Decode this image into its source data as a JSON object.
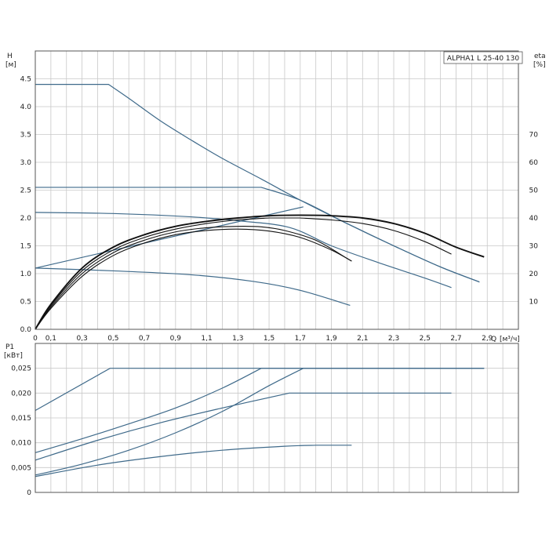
{
  "chart_data": [
    {
      "type": "line",
      "title": "ALPHA1 L 25-40 130",
      "ylabel": "H",
      "ylabel_unit": "[м]",
      "y2label": "eta",
      "y2label_unit": "[%]",
      "xlabel": "Q",
      "xlabel_unit": "[м³/ч]",
      "xlim": [
        0,
        3.1
      ],
      "ylim": [
        0,
        5
      ],
      "y2lim": [
        0,
        100
      ],
      "x_ticks": [
        0,
        0.1,
        0.3,
        0.5,
        0.7,
        0.9,
        1.1,
        1.3,
        1.5,
        1.7,
        1.9,
        2.1,
        2.3,
        2.5,
        2.7,
        2.9
      ],
      "x_tick_labels": [
        "0",
        "0,1",
        "0,3",
        "0,5",
        "0,7",
        "0,9",
        "1,1",
        "1,3",
        "1,5",
        "1,7",
        "1,9",
        "2,1",
        "2,3",
        "2,5",
        "2,7",
        "2,9"
      ],
      "y_ticks": [
        0,
        0.5,
        1,
        1.5,
        2,
        2.5,
        3,
        3.5,
        4,
        4.5
      ],
      "y_tick_labels": [
        "0.0",
        "0.5",
        "1.0",
        "1.5",
        "2.0",
        "2.5",
        "3.0",
        "3.5",
        "4.0",
        "4.5"
      ],
      "y2_ticks": [
        10,
        20,
        30,
        40,
        50,
        60,
        70
      ],
      "y2_tick_labels": [
        "10",
        "20",
        "30",
        "40",
        "50",
        "60",
        "70"
      ],
      "grid": true,
      "series": [
        {
          "color": "#3f6a8a",
          "axis": "left",
          "x": [
            0,
            0.47,
            0.6,
            0.8,
            1.0,
            1.2,
            1.45,
            1.7,
            2.0,
            2.3,
            2.6,
            2.85
          ],
          "y": [
            4.4,
            4.4,
            4.15,
            3.75,
            3.4,
            3.07,
            2.7,
            2.32,
            1.9,
            1.5,
            1.12,
            0.85
          ]
        },
        {
          "color": "#3f6a8a",
          "axis": "left",
          "x": [
            0,
            1.45,
            1.7,
            2.0,
            2.3,
            2.6,
            2.85
          ],
          "y": [
            2.55,
            2.55,
            2.32,
            1.9,
            1.5,
            1.12,
            0.85
          ]
        },
        {
          "color": "#3f6a8a",
          "axis": "left",
          "x": [
            0,
            0.5,
            1.0,
            1.3,
            1.63,
            1.9,
            2.2,
            2.5,
            2.67
          ],
          "y": [
            2.1,
            2.08,
            2.02,
            1.95,
            1.83,
            1.5,
            1.2,
            0.92,
            0.75
          ]
        },
        {
          "color": "#3f6a8a",
          "axis": "left",
          "x": [
            0,
            0.5,
            1.0,
            1.4,
            1.7,
            2.02
          ],
          "y": [
            1.1,
            1.05,
            0.98,
            0.86,
            0.7,
            0.43
          ]
        },
        {
          "color": "#3f6a8a",
          "axis": "left",
          "x": [
            0,
            1.72
          ],
          "y": [
            1.1,
            2.2
          ]
        },
        {
          "color": "#111111",
          "axis": "right",
          "x": [
            0,
            0.1,
            0.3,
            0.5,
            0.7,
            0.9,
            1.1,
            1.3,
            1.5,
            1.7,
            1.9,
            2.1,
            2.3,
            2.5,
            2.7,
            2.88
          ],
          "y": [
            0,
            9,
            22,
            29.5,
            34,
            37,
            38.8,
            40,
            40.8,
            41,
            40.8,
            40,
            38,
            34.5,
            29.5,
            26
          ]
        },
        {
          "color": "#111111",
          "axis": "right",
          "x": [
            0,
            0.1,
            0.3,
            0.5,
            0.7,
            0.9,
            1.1,
            1.3,
            1.5,
            1.7,
            1.9,
            2.1,
            2.3,
            2.5,
            2.67
          ],
          "y": [
            0,
            8.5,
            21,
            28.5,
            33,
            36,
            38,
            39.3,
            40,
            40,
            39.3,
            38,
            35.5,
            31.5,
            27
          ]
        },
        {
          "color": "#111111",
          "axis": "right",
          "x": [
            0,
            0.1,
            0.3,
            0.5,
            0.7,
            0.9,
            1.1,
            1.3,
            1.45,
            1.6,
            1.8,
            2.0,
            2.03
          ],
          "y": [
            0,
            8,
            20,
            27.5,
            32,
            35,
            36.5,
            37,
            36.8,
            35.5,
            32,
            25.5,
            24.5
          ]
        },
        {
          "color": "#111111",
          "axis": "right",
          "x": [
            0,
            0.1,
            0.3,
            0.5,
            0.7,
            0.9,
            1.1,
            1.3,
            1.5,
            1.7,
            1.9,
            2.03
          ],
          "y": [
            0,
            7.5,
            19,
            26.5,
            31,
            34,
            35.5,
            36,
            35.3,
            33,
            28.5,
            24.5
          ]
        }
      ]
    },
    {
      "type": "line",
      "ylabel": "P1",
      "ylabel_unit": "[кВт]",
      "xlim": [
        0,
        3.1
      ],
      "ylim": [
        0,
        0.03
      ],
      "y_ticks": [
        0,
        0.005,
        0.01,
        0.015,
        0.02,
        0.025
      ],
      "y_tick_labels": [
        "0",
        "0,005",
        "0,010",
        "0,015",
        "0,020",
        "0,025"
      ],
      "grid": true,
      "series": [
        {
          "color": "#3f6a8a",
          "x": [
            0,
            0.48,
            2.88
          ],
          "y": [
            0.0165,
            0.025,
            0.025
          ]
        },
        {
          "color": "#3f6a8a",
          "x": [
            0,
            0.3,
            0.6,
            0.9,
            1.2,
            1.45,
            2.88
          ],
          "y": [
            0.008,
            0.0108,
            0.0138,
            0.017,
            0.021,
            0.025,
            0.025
          ]
        },
        {
          "color": "#3f6a8a",
          "x": [
            0,
            0.3,
            0.6,
            0.9,
            1.2,
            1.5,
            1.72,
            2.88
          ],
          "y": [
            0.0035,
            0.0057,
            0.0085,
            0.012,
            0.0163,
            0.0215,
            0.025,
            0.025
          ]
        },
        {
          "color": "#3f6a8a",
          "x": [
            0,
            0.4,
            0.8,
            1.2,
            1.63,
            2.67
          ],
          "y": [
            0.0065,
            0.0105,
            0.014,
            0.017,
            0.02,
            0.02
          ]
        },
        {
          "color": "#3f6a8a",
          "x": [
            0,
            0.4,
            0.8,
            1.2,
            1.6,
            1.8,
            2.03
          ],
          "y": [
            0.0032,
            0.0055,
            0.0072,
            0.0085,
            0.0093,
            0.0095,
            0.0095
          ]
        }
      ]
    }
  ]
}
